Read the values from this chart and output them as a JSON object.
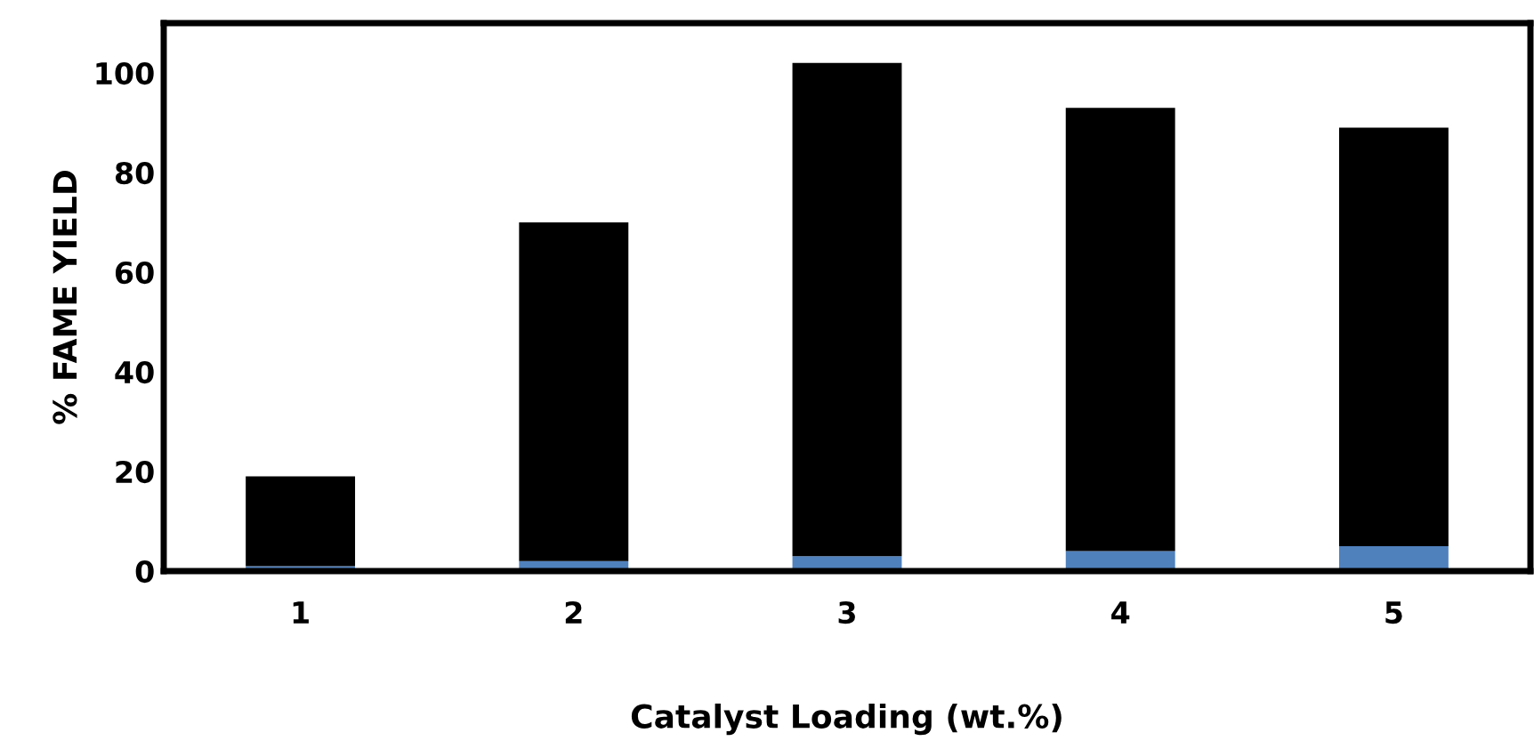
{
  "chart_data": {
    "type": "bar",
    "stacked": true,
    "xlabel": "Catalyst Loading (wt.%)",
    "ylabel": "% FAME YIELD",
    "categories": [
      "1",
      "2",
      "3",
      "4",
      "5"
    ],
    "series": [
      {
        "color": "#4f81bd",
        "values": [
          1,
          2,
          3,
          4,
          5
        ]
      },
      {
        "color": "#000000",
        "values": [
          18,
          68,
          99,
          89,
          84
        ]
      }
    ],
    "ylim": [
      0,
      110
    ],
    "yticks": [
      0,
      20,
      40,
      60,
      80,
      100
    ],
    "grid": false,
    "legend": false
  }
}
